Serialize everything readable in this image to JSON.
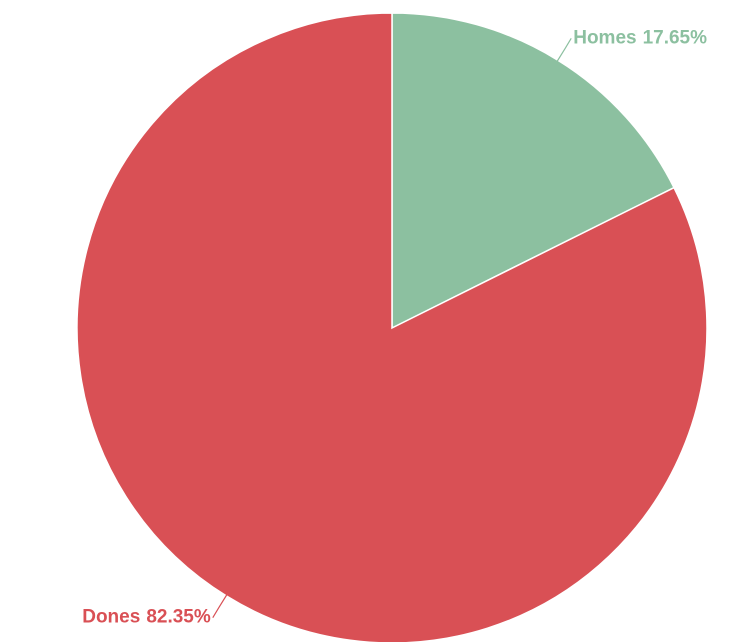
{
  "chart_data": {
    "type": "pie",
    "categories": [
      "Homes",
      "Dones"
    ],
    "values": [
      17.65,
      82.35
    ],
    "value_labels": [
      "17.65%",
      "82.35%"
    ],
    "colors": [
      "#8cc0a0",
      "#d95055"
    ]
  }
}
